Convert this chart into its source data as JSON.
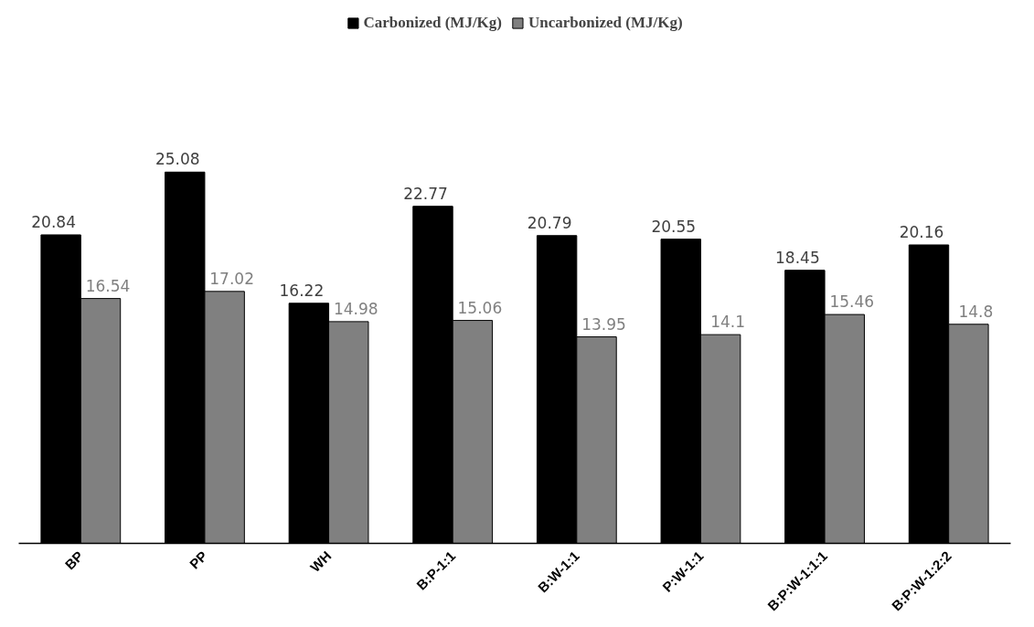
{
  "chart_data": {
    "type": "bar",
    "categories": [
      "BP",
      "PP",
      "WH",
      "B:P-1:1",
      "B:W-1:1",
      "P:W-1:1",
      "B:P:W-1:1:1",
      "B:P:W-1:2:2"
    ],
    "series": [
      {
        "name": "Carbonized (MJ/Kg)",
        "color": "#000000",
        "values": [
          20.84,
          25.08,
          16.22,
          22.77,
          20.79,
          20.55,
          18.45,
          20.16
        ]
      },
      {
        "name": "Uncarbonized (MJ/Kg)",
        "color": "#808080",
        "values": [
          16.54,
          17.02,
          14.98,
          15.06,
          13.95,
          14.1,
          15.46,
          14.8
        ]
      }
    ],
    "data_labels": true,
    "legend": "top",
    "grid": false
  }
}
